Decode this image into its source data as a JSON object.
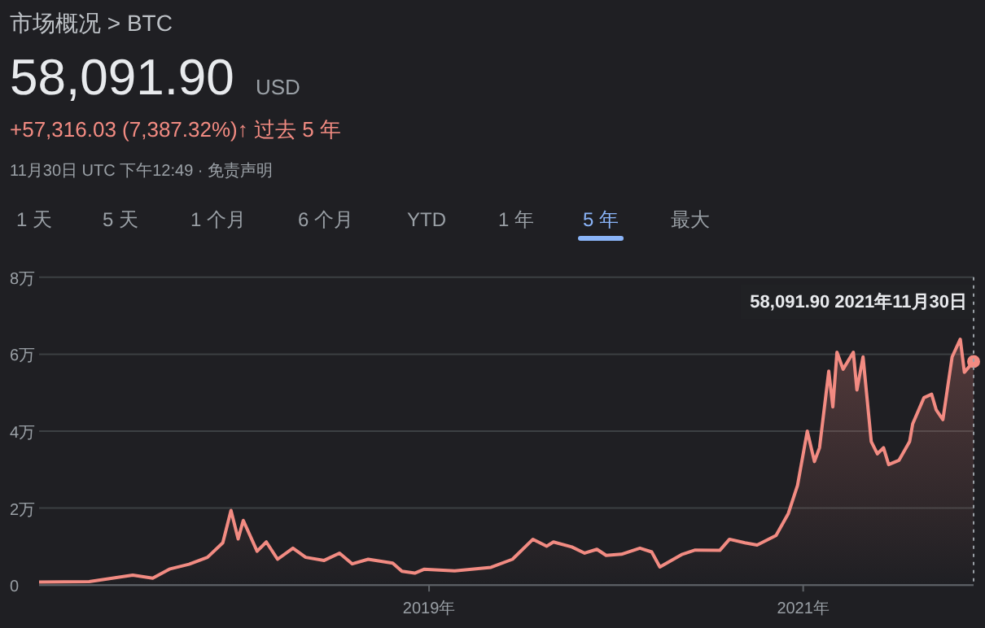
{
  "chart_data": {
    "type": "area",
    "title": "市场概况 > BTC",
    "subtitle": "58,091.90",
    "annotations": [
      "USD",
      "+57,316.03 (7,387.32%)↑ 过去 5 年",
      "11月30日 UTC 下午12:49 · 免责声明",
      "1 天",
      "5 天",
      "1 个月",
      "6 个月",
      "YTD",
      "1 年",
      "5 年",
      "最大",
      {
        "text": "58,091.90  2021年11月30日",
        "x": "2021-11-30",
        "y": 5.81
      }
    ],
    "x": [
      "2016-11-30",
      "2017-03-08",
      "2017-06-01",
      "2017-07-10",
      "2017-08-13",
      "2017-09-19",
      "2017-10-25",
      "2017-11-24",
      "2017-12-10",
      "2017-12-24",
      "2018-01-03",
      "2018-01-30",
      "2018-02-17",
      "2018-03-11",
      "2018-04-10",
      "2018-05-05",
      "2018-06-10",
      "2018-07-10",
      "2018-08-04",
      "2018-09-04",
      "2018-10-22",
      "2018-11-09",
      "2018-12-04",
      "2018-12-22",
      "2019-02-20",
      "2019-05-02",
      "2019-06-13",
      "2019-07-23",
      "2019-08-19",
      "2019-09-01",
      "2019-10-07",
      "2019-11-01",
      "2019-11-25",
      "2019-12-13",
      "2020-01-12",
      "2020-02-17",
      "2020-03-11",
      "2020-03-27",
      "2020-05-10",
      "2020-06-04",
      "2020-07-22",
      "2020-08-10",
      "2020-09-09",
      "2020-10-03",
      "2020-11-09",
      "2020-12-03",
      "2020-12-21",
      "2021-01-09",
      "2021-01-23",
      "2021-02-02",
      "2021-02-20",
      "2021-02-28",
      "2021-03-08",
      "2021-03-20",
      "2021-04-09",
      "2021-04-16",
      "2021-04-28",
      "2021-05-14",
      "2021-05-26",
      "2021-06-07",
      "2021-06-17",
      "2021-07-07",
      "2021-07-28",
      "2021-08-03",
      "2021-08-25",
      "2021-09-09",
      "2021-09-18",
      "2021-10-01",
      "2021-10-19",
      "2021-11-04",
      "2021-11-12",
      "2021-11-30"
    ],
    "series": [
      {
        "color": "#f28b82",
        "values": [
          0.08,
          0.09,
          0.26,
          0.18,
          0.42,
          0.54,
          0.72,
          1.1,
          1.94,
          1.2,
          1.68,
          0.88,
          1.12,
          0.67,
          0.96,
          0.72,
          0.64,
          0.83,
          0.55,
          0.67,
          0.57,
          0.36,
          0.31,
          0.41,
          0.37,
          0.46,
          0.67,
          1.19,
          1.01,
          1.12,
          0.99,
          0.83,
          0.93,
          0.77,
          0.8,
          0.96,
          0.86,
          0.47,
          0.8,
          0.91,
          0.9,
          1.19,
          1.1,
          1.04,
          1.29,
          1.86,
          2.59,
          4.0,
          3.21,
          3.57,
          5.56,
          4.63,
          6.05,
          5.61,
          6.05,
          5.07,
          5.93,
          3.73,
          3.41,
          3.57,
          3.13,
          3.24,
          3.73,
          4.19,
          4.87,
          4.96,
          4.55,
          4.3,
          5.93,
          6.39,
          5.53,
          5.81
        ]
      }
    ],
    "xlim": [
      "2016-11-30",
      "2021-11-30"
    ],
    "xticks": [
      {
        "value": "2019-01-01",
        "label": "2019年"
      },
      {
        "value": "2021-01-01",
        "label": "2021年"
      }
    ],
    "ylim": [
      0,
      8
    ],
    "yticks": [
      0,
      {
        "value": 2,
        "label": "2万"
      },
      {
        "value": 4,
        "label": "4万"
      },
      {
        "value": 6,
        "label": "6万"
      },
      {
        "value": 8,
        "label": "8万"
      }
    ],
    "ref_lines": [
      {
        "axis": "x",
        "value": "2021-11-30",
        "line_style": "dotted",
        "color": "#9aa0a6"
      }
    ],
    "grid": "y",
    "marker": "none",
    "line_style": "solid"
  }
}
